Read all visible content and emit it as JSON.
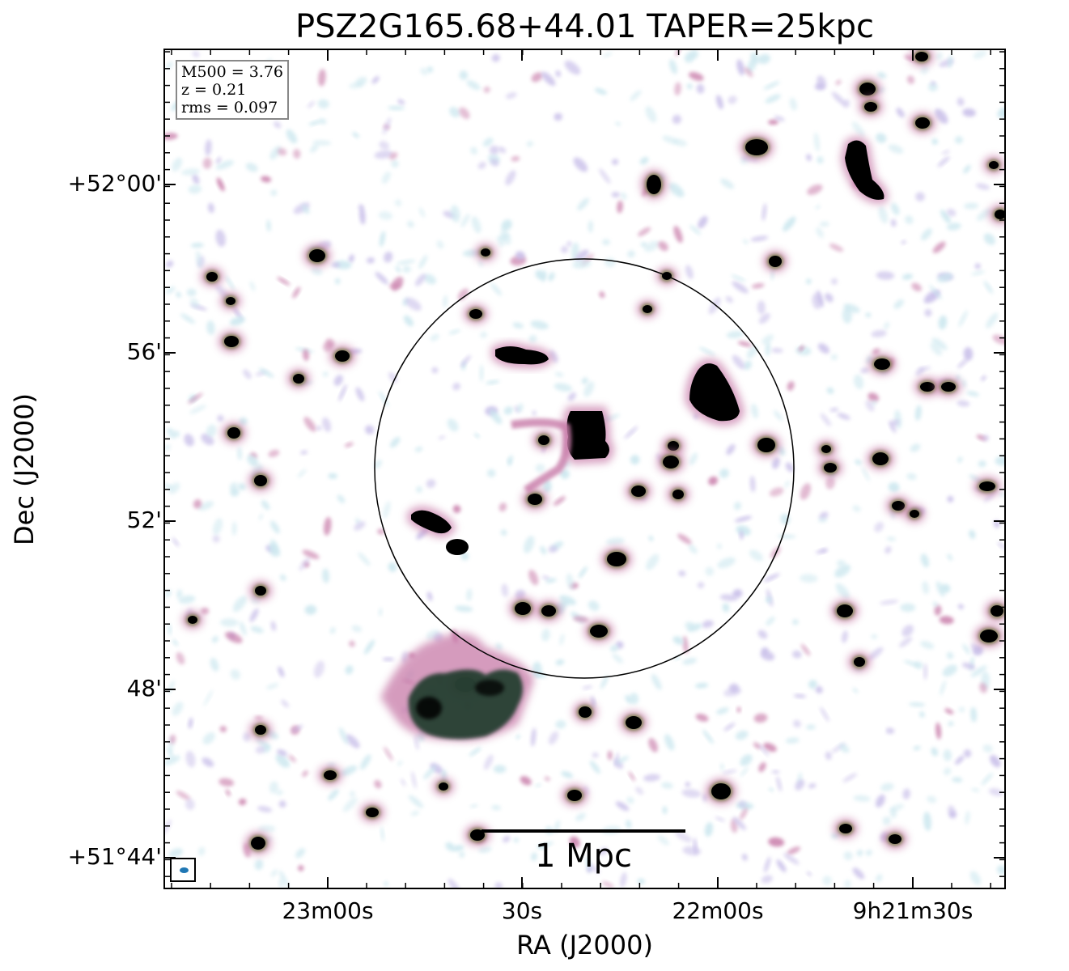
{
  "title": "PSZ2G165.68+44.01 TAPER=25kpc",
  "axes": {
    "xlabel": "RA (J2000)",
    "ylabel": "Dec (J2000)",
    "xticks": [
      "23m00s",
      "30s",
      "22m00s",
      "9h21m30s"
    ],
    "yticks": [
      "+52°00'",
      "56'",
      "52'",
      "48'",
      "+51°44'"
    ]
  },
  "info": {
    "m500": "M500 = 3.76",
    "z": "z = 0.21",
    "rms": "rms = 0.097"
  },
  "scalebar": {
    "label": "1 Mpc"
  },
  "colors": {
    "background": "#ffffff",
    "noise_light": "#c9e6ee",
    "noise_purple": "#c6bce8",
    "pink": "#c77aa8",
    "olive": "#6a7a3a",
    "green_dark": "#1e3a2a",
    "core": "#000000",
    "beam": "#1f77b4"
  },
  "image_description_note": ""
}
